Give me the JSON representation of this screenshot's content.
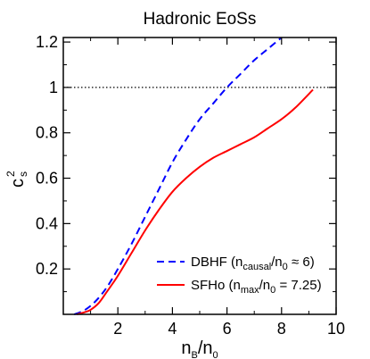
{
  "chart_data": {
    "type": "line",
    "title": "Hadronic EoSs",
    "xlabel": {
      "main": "n",
      "sub1": "B",
      "sep": "/n",
      "sub2": "0"
    },
    "ylabel": {
      "main": "c",
      "sup": "2",
      "sub": "s"
    },
    "xlim": [
      0,
      10
    ],
    "ylim": [
      0,
      1.22
    ],
    "xticks": [
      2,
      4,
      6,
      8,
      10
    ],
    "xtick_labels": [
      "2",
      "4",
      "6",
      "8",
      "10"
    ],
    "yticks": [
      0.2,
      0.4,
      0.6,
      0.8,
      1.0,
      1.2
    ],
    "ytick_labels": [
      "0.2",
      "0.4",
      "0.6",
      "0.8",
      "1",
      "1.2"
    ],
    "reference_line": {
      "y": 1,
      "style": "dotted",
      "color": "#000000"
    },
    "legend_position": "bottom-right",
    "series": [
      {
        "name": "DBHF",
        "legend": {
          "prefix": "DBHF (n",
          "sub1": "causal",
          "mid": "/n",
          "sub2": "0",
          "suffix": " ≈ 6)"
        },
        "color": "#0000ff",
        "style": "dashed",
        "x": [
          0.4,
          0.8,
          1.2,
          1.6,
          2.0,
          2.5,
          3.0,
          3.5,
          4.0,
          4.5,
          5.0,
          5.5,
          6.0,
          6.5,
          7.0,
          7.5,
          8.0
        ],
        "y": [
          0.0,
          0.02,
          0.06,
          0.12,
          0.2,
          0.31,
          0.43,
          0.55,
          0.67,
          0.77,
          0.86,
          0.93,
          1.0,
          1.06,
          1.12,
          1.17,
          1.22
        ]
      },
      {
        "name": "SFHo",
        "legend": {
          "prefix": "SFHo (n",
          "sub1": "max",
          "mid": "/n",
          "sub2": "0",
          "suffix": " = 7.25)"
        },
        "color": "#ff0000",
        "style": "solid",
        "x": [
          0.5,
          0.8,
          1.0,
          1.3,
          1.6,
          2.0,
          2.5,
          3.0,
          3.5,
          4.0,
          4.5,
          5.0,
          5.5,
          6.0,
          6.5,
          7.0,
          7.5,
          8.0,
          8.5,
          9.15
        ],
        "y": [
          0.0,
          0.01,
          0.02,
          0.05,
          0.1,
          0.17,
          0.27,
          0.37,
          0.46,
          0.54,
          0.6,
          0.65,
          0.69,
          0.72,
          0.75,
          0.78,
          0.82,
          0.86,
          0.91,
          0.99
        ]
      }
    ]
  }
}
